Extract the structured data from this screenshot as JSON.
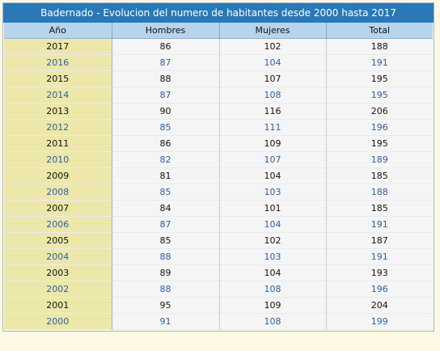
{
  "title": "Badernado - Evolucion del numero de habitantes desde 2000 hasta 2017",
  "headers": [
    "Año",
    "Hombres",
    "Mujeres",
    "Total"
  ],
  "rows": [
    {
      "year": "2017",
      "hombres": "86",
      "mujeres": "102",
      "total": "188"
    },
    {
      "year": "2016",
      "hombres": "87",
      "mujeres": "104",
      "total": "191"
    },
    {
      "year": "2015",
      "hombres": "88",
      "mujeres": "107",
      "total": "195"
    },
    {
      "year": "2014",
      "hombres": "87",
      "mujeres": "108",
      "total": "195"
    },
    {
      "year": "2013",
      "hombres": "90",
      "mujeres": "116",
      "total": "206"
    },
    {
      "year": "2012",
      "hombres": "85",
      "mujeres": "111",
      "total": "196"
    },
    {
      "year": "2011",
      "hombres": "86",
      "mujeres": "109",
      "total": "195"
    },
    {
      "year": "2010",
      "hombres": "82",
      "mujeres": "107",
      "total": "189"
    },
    {
      "year": "2009",
      "hombres": "81",
      "mujeres": "104",
      "total": "185"
    },
    {
      "year": "2008",
      "hombres": "85",
      "mujeres": "103",
      "total": "188"
    },
    {
      "year": "2007",
      "hombres": "84",
      "mujeres": "101",
      "total": "185"
    },
    {
      "year": "2006",
      "hombres": "87",
      "mujeres": "104",
      "total": "191"
    },
    {
      "year": "2005",
      "hombres": "85",
      "mujeres": "102",
      "total": "187"
    },
    {
      "year": "2004",
      "hombres": "88",
      "mujeres": "103",
      "total": "191"
    },
    {
      "year": "2003",
      "hombres": "89",
      "mujeres": "104",
      "total": "193"
    },
    {
      "year": "2002",
      "hombres": "88",
      "mujeres": "108",
      "total": "196"
    },
    {
      "year": "2001",
      "hombres": "95",
      "mujeres": "109",
      "total": "204"
    },
    {
      "year": "2000",
      "hombres": "91",
      "mujeres": "108",
      "total": "199"
    }
  ],
  "colors": {
    "title_bg": "#2a78b8",
    "header_bg": "#b7d4ed",
    "year_col_bg": "#ede8aa",
    "cell_bg": "#f5f5f5",
    "dark_text": "#111111",
    "blue_text": "#2b5fa6"
  }
}
